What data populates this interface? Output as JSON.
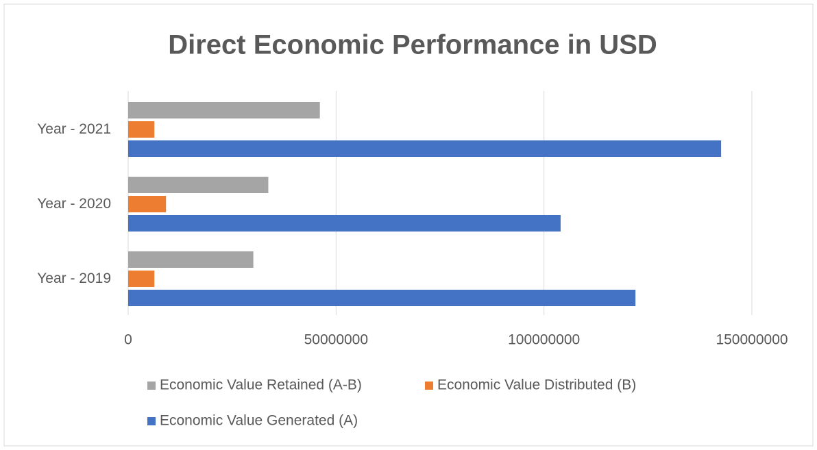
{
  "chart_data": {
    "type": "barh",
    "title": "Direct Economic Performance in USD",
    "categories": [
      "Year - 2019",
      "Year - 2020",
      "Year - 2021"
    ],
    "series": [
      {
        "name": "Economic Value Retained (A-B)",
        "color": "#a5a5a5",
        "values": [
          30100000,
          33700000,
          46100000
        ]
      },
      {
        "name": "Economic Value Distributed (B)",
        "color": "#ed7d31",
        "values": [
          6300000,
          9100000,
          6300000
        ]
      },
      {
        "name": "Economic Value Generated (A)",
        "color": "#4472c4",
        "values": [
          122000000,
          104000000,
          142600000
        ]
      }
    ],
    "xlim": [
      0,
      150000000
    ],
    "xticks": [
      0,
      50000000,
      100000000,
      150000000
    ],
    "grid": true,
    "legend": "bottom"
  }
}
